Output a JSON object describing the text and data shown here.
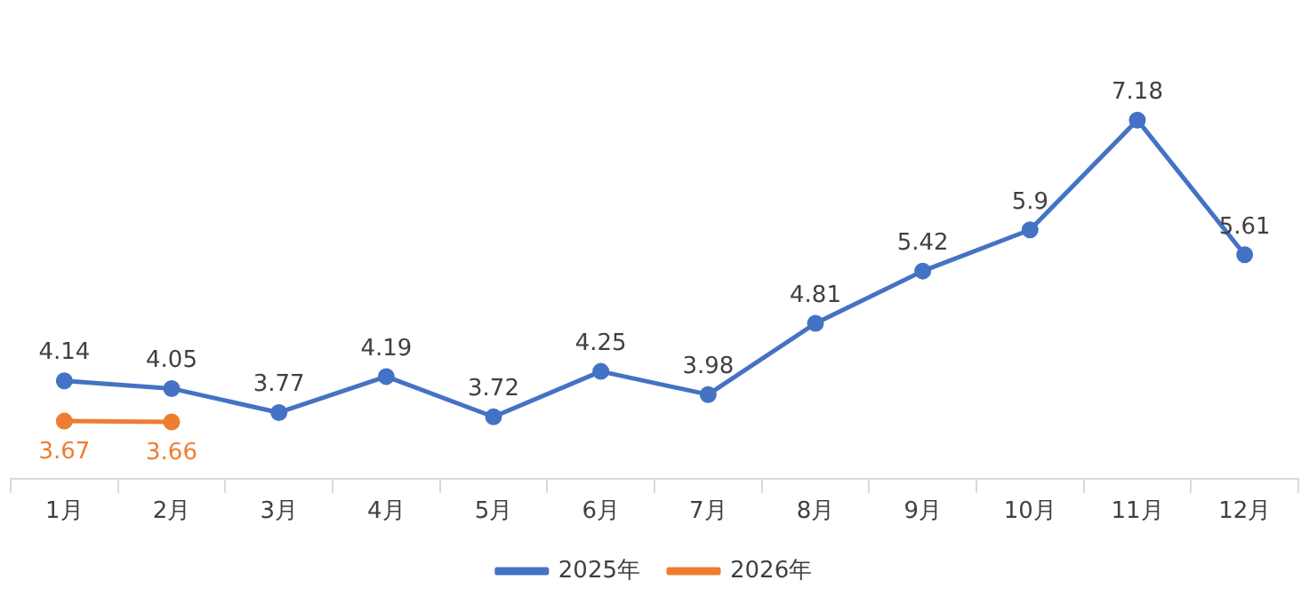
{
  "chart_data": {
    "type": "line",
    "categories": [
      "1月",
      "2月",
      "3月",
      "4月",
      "5月",
      "6月",
      "7月",
      "8月",
      "9月",
      "10月",
      "11月",
      "12月"
    ],
    "series": [
      {
        "name": "2025年",
        "color": "#4472c4",
        "values": [
          4.14,
          4.05,
          3.77,
          4.19,
          3.72,
          4.25,
          3.98,
          4.81,
          5.42,
          5.9,
          7.18,
          5.61
        ]
      },
      {
        "name": "2026年",
        "color": "#ed7d31",
        "values": [
          3.67,
          3.66,
          null,
          null,
          null,
          null,
          null,
          null,
          null,
          null,
          null,
          null
        ]
      }
    ],
    "data_labels": true,
    "legend": "bottom",
    "grid": false,
    "marker": "circle",
    "line_style": "solid"
  }
}
